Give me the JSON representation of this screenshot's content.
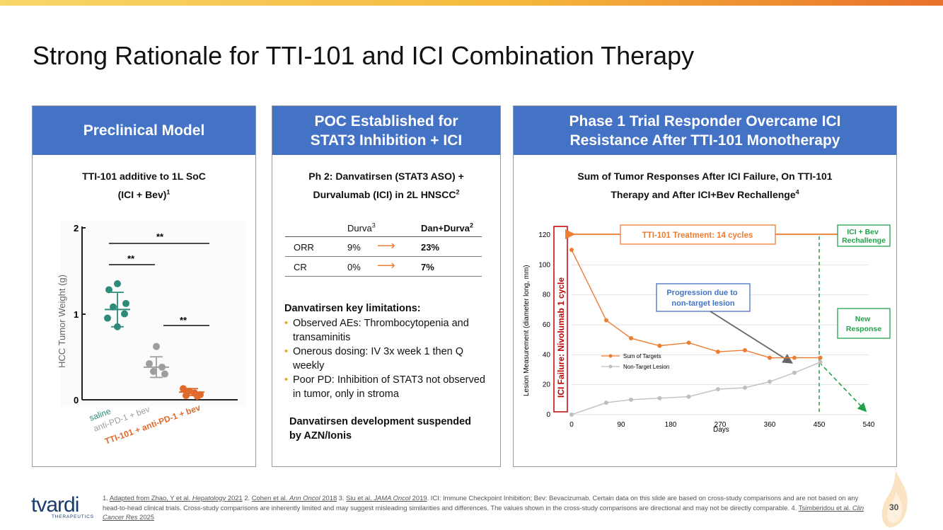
{
  "slide": {
    "title": "Strong Rationale for TTI-101 and ICI Combination Therapy",
    "page_number": "30"
  },
  "panel1": {
    "header": "Preclinical Model",
    "subtitle_line1": "TTI-101 additive to 1L SoC",
    "subtitle_line2": "(ICI + Bev)",
    "subtitle_sup": "1",
    "chart_data": {
      "type": "scatter",
      "ylabel": "HCC Tumor Weight (g)",
      "yticks": [
        "2",
        "1",
        "0"
      ],
      "ylim": [
        0,
        2
      ],
      "groups": [
        {
          "name": "saline",
          "color": "#2e8b7a",
          "points": [
            1.35,
            1.28,
            1.12,
            1.08,
            1.0,
            0.95,
            0.85
          ],
          "mean": 1.05
        },
        {
          "name": "anti-PD-1 + bev",
          "color": "#9e9e9e",
          "points": [
            0.62,
            0.42,
            0.38,
            0.33,
            0.3
          ],
          "mean": 0.38
        },
        {
          "name": "TTI-101 + anti-PD-1 + bev",
          "color": "#e06a2c",
          "points": [
            0.13,
            0.1,
            0.08,
            0.06,
            0.05,
            0.04
          ],
          "mean": 0.09
        }
      ],
      "significance": [
        "**",
        "**",
        "**"
      ]
    }
  },
  "panel2": {
    "header_line1": "POC Established for",
    "header_line2": "STAT3 Inhibition + ICI",
    "subtitle_line1": "Ph 2: Danvatirsen (STAT3 ASO) +",
    "subtitle_line2": "Durvalumab (ICI) in 2L HNSCC",
    "subtitle_sup": "2",
    "table": {
      "col2_header": "Durva",
      "col2_sup": "3",
      "col3_header": "Dan+Durva",
      "col3_sup": "2",
      "arrow": "⟶",
      "rows": [
        {
          "label": "ORR",
          "durva": "9%",
          "dan_durva": "23%"
        },
        {
          "label": "CR",
          "durva": "0%",
          "dan_durva": "7%"
        }
      ]
    },
    "limitations_title": "Danvatirsen key limitations:",
    "bullet_glyph": "•",
    "bullets": [
      "Observed AEs: Thrombocytopenia and transaminitis",
      "Onerous dosing: IV 3x week 1 then Q weekly",
      "Poor PD: Inhibition of STAT3 not observed in tumor, only in stroma"
    ],
    "suspended": "Danvatirsen development suspended by AZN/Ionis"
  },
  "panel3": {
    "header_line1": "Phase 1 Trial Responder Overcame ICI",
    "header_line2": "Resistance After TTI-101 Monotherapy",
    "subtitle_line1": "Sum of Tumor Responses After ICI Failure, On TTI-101",
    "subtitle_line2": "Therapy and After ICI+Bev Rechallenge",
    "subtitle_sup": "4",
    "chart_data": {
      "type": "line",
      "xlabel": "Days",
      "ylabel": "Lesion Measurement (diameter long, mm)",
      "xlim": [
        0,
        540
      ],
      "ylim": [
        0,
        120
      ],
      "xticks": [
        0,
        90,
        180,
        270,
        360,
        450,
        540
      ],
      "yticks": [
        0,
        20,
        40,
        60,
        80,
        100,
        120
      ],
      "series": [
        {
          "name": "Sum of Targets",
          "color": "#ed7d31",
          "x": [
            0,
            63,
            108,
            160,
            213,
            266,
            315,
            360,
            405,
            452
          ],
          "y": [
            110,
            63,
            51,
            46,
            48,
            42,
            43,
            38,
            38,
            38
          ]
        },
        {
          "name": "Non-Target Lesion",
          "color": "#bfbfbf",
          "x": [
            0,
            63,
            108,
            160,
            213,
            266,
            315,
            360,
            405,
            452
          ],
          "y": [
            0,
            8,
            10,
            11,
            12,
            17,
            18,
            22,
            28,
            35
          ]
        }
      ],
      "annotations": {
        "ici_failure": "ICI Failure: Nivolumab 1 cycle",
        "treatment": "TTI-101 Treatment: 14 cycles",
        "rechallenge": "ICI + Bev Rechallenge",
        "progression": "Progression due to non-target lesion",
        "new_response": "New Response"
      }
    }
  },
  "footer": {
    "ref1": "Adapted from Zhao, Y et al.",
    "ref1_journal": "Hepatology",
    "ref1_year": "2021",
    "ref2": "Cohen et al.",
    "ref2_journal": "Ann Oncol",
    "ref2_year": "2018",
    "ref3": "Siu et al.",
    "ref3_journal": "JAMA Oncol",
    "ref3_year": "2019",
    "disclaimer": "ICI: Immune Checkpoint Inhibition; Bev: Bevacizumab. Certain data on this slide are based on cross-study comparisons and are not based on any head-to-head clinical trials. Cross-study comparisons are inherently limited and may suggest misleading similarities and differences. The values shown in the cross-study comparisons are directional and may not be directly comparable.",
    "ref4": "Tsimberidou et al.",
    "ref4_journal": "Clin Cancer Res",
    "ref4_year": "2025",
    "logo": "tvardi",
    "logo_sub": "THERAPEUTICS"
  }
}
